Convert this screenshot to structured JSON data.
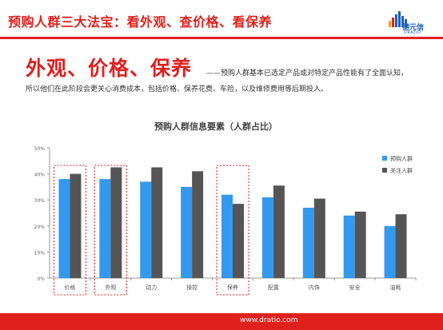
{
  "header": {
    "title": "预购人群三大法宝：看外观、查价格、看保养",
    "logo_text": "德元信",
    "logo_sub": "DRATIO"
  },
  "intro": {
    "headline": "外观、价格、保养",
    "line1": "——预购人群基本已选定产品或对特定产品性能有了全面认知，",
    "line2": "所以他们在此阶段会更关心消费成本，包括价格、保养花费、车险，以及维修费用等后期投入。"
  },
  "chart_data": {
    "type": "bar",
    "title": "预购人群信息要素（人群占比）",
    "categories": [
      "价格",
      "外观",
      "动力",
      "操控",
      "保养",
      "配置",
      "内饰",
      "安全",
      "油耗"
    ],
    "series": [
      {
        "name": "预购人群",
        "color": "#3399ee",
        "values": [
          38,
          38,
          37,
          35,
          32,
          31,
          27,
          24,
          20
        ]
      },
      {
        "name": "关注人群",
        "color": "#555555",
        "values": [
          40,
          42.5,
          42.5,
          41,
          28.5,
          35.5,
          30.5,
          25.5,
          24.5
        ]
      }
    ],
    "ylim": [
      0,
      50
    ],
    "yticks": [
      "0%",
      "10%",
      "20%",
      "30%",
      "40%",
      "50%"
    ],
    "highlighted_categories": [
      "价格",
      "外观",
      "保养"
    ],
    "highlight_color": "#e0201d",
    "legend": "right",
    "grid": false
  },
  "footer": {
    "url": "www.dratio.com"
  }
}
